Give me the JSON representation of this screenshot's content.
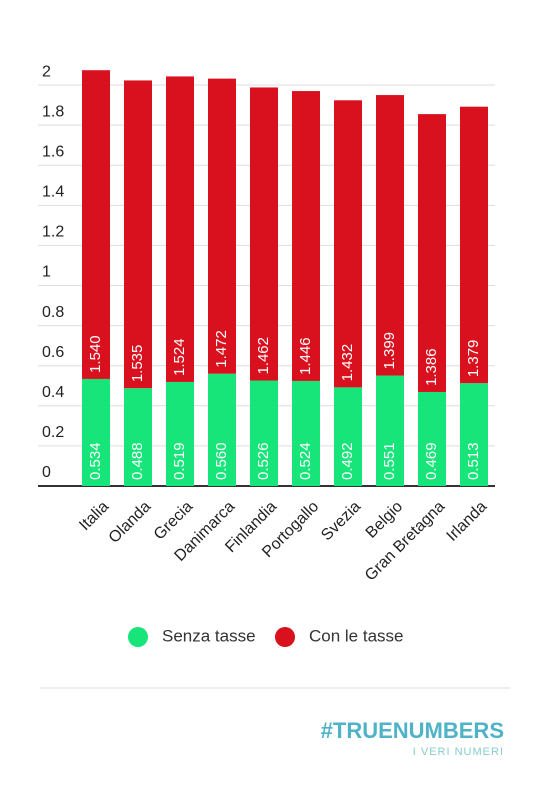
{
  "chart_data": {
    "type": "stacked_bar",
    "categories": [
      "Italia",
      "Olanda",
      "Grecia",
      "Danimarca",
      "Finlandia",
      "Portogallo",
      "Svezia",
      "Belgio",
      "Gran Bretagna",
      "Irlanda"
    ],
    "series": [
      {
        "name": "Senza tasse",
        "color": "#17e57a",
        "values": [
          0.534,
          0.488,
          0.519,
          0.56,
          0.526,
          0.524,
          0.492,
          0.551,
          0.469,
          0.513
        ],
        "value_labels": [
          "0.534",
          "0.488",
          "0.519",
          "0.560",
          "0.526",
          "0.524",
          "0.492",
          "0.551",
          "0.469",
          "0.513"
        ]
      },
      {
        "name": "Con le tasse",
        "color": "#d9101e",
        "values": [
          1.54,
          1.535,
          1.524,
          1.472,
          1.462,
          1.446,
          1.432,
          1.399,
          1.386,
          1.379
        ],
        "value_labels": [
          "1.540",
          "1.535",
          "1.524",
          "1.472",
          "1.462",
          "1.446",
          "1.432",
          "1.399",
          "1.386",
          "1.379"
        ]
      }
    ],
    "ylim": [
      0,
      2.1
    ],
    "yticks": [
      0,
      0.2,
      0.4,
      0.6,
      0.8,
      1,
      1.2,
      1.4,
      1.6,
      1.8,
      2
    ],
    "grid": true
  },
  "footer": {
    "logo": "#TRUENUMBERS",
    "tagline": "I VERI NUMERI"
  }
}
